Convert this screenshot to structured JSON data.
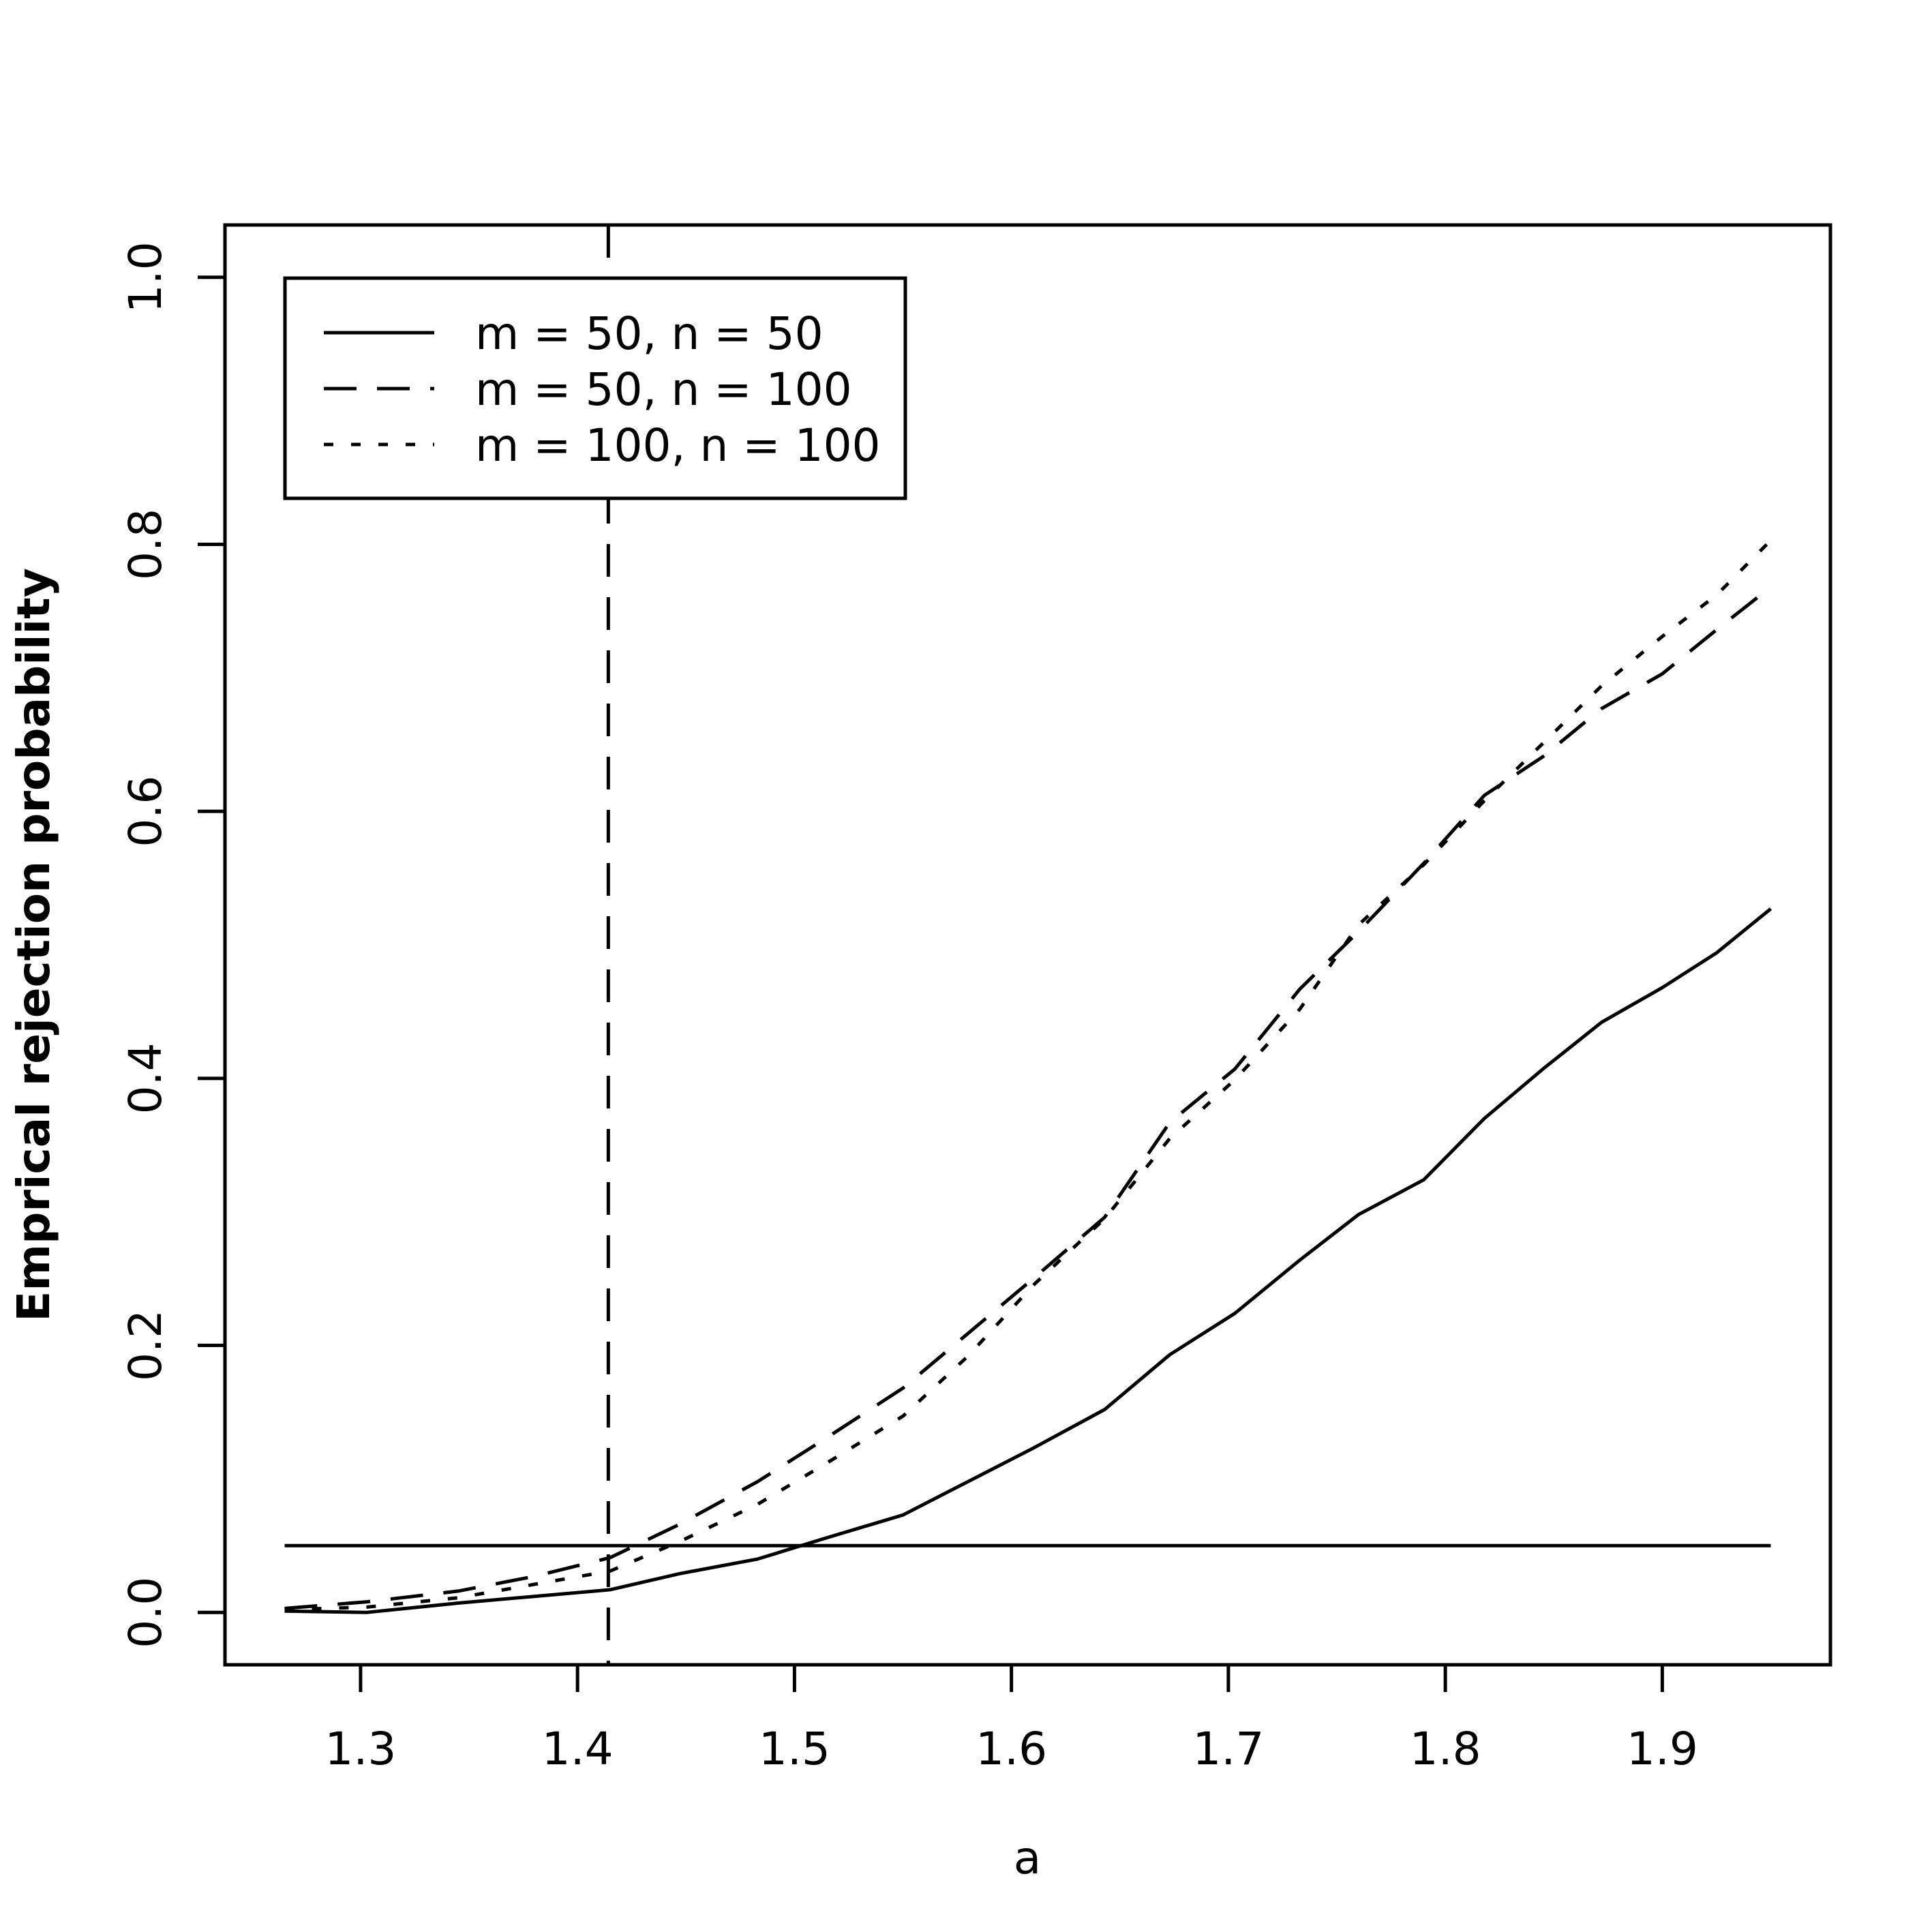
{
  "chart_data": {
    "type": "line",
    "title": "",
    "xlabel": "a",
    "ylabel": "Emprical rejection probability",
    "xlim": [
      1.2375,
      1.9775
    ],
    "ylim": [
      -0.0392,
      1.0392
    ],
    "x_ticks": [
      1.3,
      1.4,
      1.5,
      1.6,
      1.7,
      1.8,
      1.9
    ],
    "x_tick_labels": [
      "1.3",
      "1.4",
      "1.5",
      "1.6",
      "1.7",
      "1.8",
      "1.9"
    ],
    "y_ticks": [
      0.0,
      0.2,
      0.4,
      0.6,
      0.8,
      1.0
    ],
    "y_tick_labels": [
      "0.0",
      "0.2",
      "0.4",
      "0.6",
      "0.8",
      "1.0"
    ],
    "grid": false,
    "legend_position": "top-left",
    "x": [
      1.265,
      1.303,
      1.345,
      1.38,
      1.415,
      1.447,
      1.483,
      1.515,
      1.55,
      1.58,
      1.61,
      1.643,
      1.673,
      1.703,
      1.733,
      1.76,
      1.79,
      1.818,
      1.845,
      1.872,
      1.9,
      1.925,
      1.95
    ],
    "series": [
      {
        "name": "m = 50, n = 50",
        "dash": "solid",
        "values": [
          0.001,
          0.0,
          0.007,
          0.012,
          0.017,
          0.029,
          0.04,
          0.056,
          0.073,
          0.098,
          0.123,
          0.152,
          0.193,
          0.224,
          0.264,
          0.298,
          0.324,
          0.37,
          0.407,
          0.442,
          0.468,
          0.494,
          0.527
        ]
      },
      {
        "name": "m = 50, n = 100",
        "dash": "dashed",
        "values": [
          0.003,
          0.008,
          0.016,
          0.027,
          0.041,
          0.066,
          0.098,
          0.131,
          0.168,
          0.209,
          0.25,
          0.296,
          0.367,
          0.407,
          0.467,
          0.51,
          0.561,
          0.612,
          0.641,
          0.677,
          0.703,
          0.736,
          0.768
        ]
      },
      {
        "name": "m = 100, n = 100",
        "dash": "dotted",
        "values": [
          0.002,
          0.004,
          0.011,
          0.021,
          0.031,
          0.053,
          0.081,
          0.112,
          0.147,
          0.192,
          0.245,
          0.295,
          0.355,
          0.399,
          0.452,
          0.515,
          0.56,
          0.608,
          0.651,
          0.694,
          0.731,
          0.762,
          0.803
        ]
      }
    ],
    "reference_lines": [
      {
        "orientation": "horizontal",
        "value": 0.05,
        "from": 1.265,
        "to": 1.95,
        "dash": "solid"
      },
      {
        "orientation": "vertical",
        "value": 1.4142,
        "dash": "dashed"
      }
    ]
  }
}
